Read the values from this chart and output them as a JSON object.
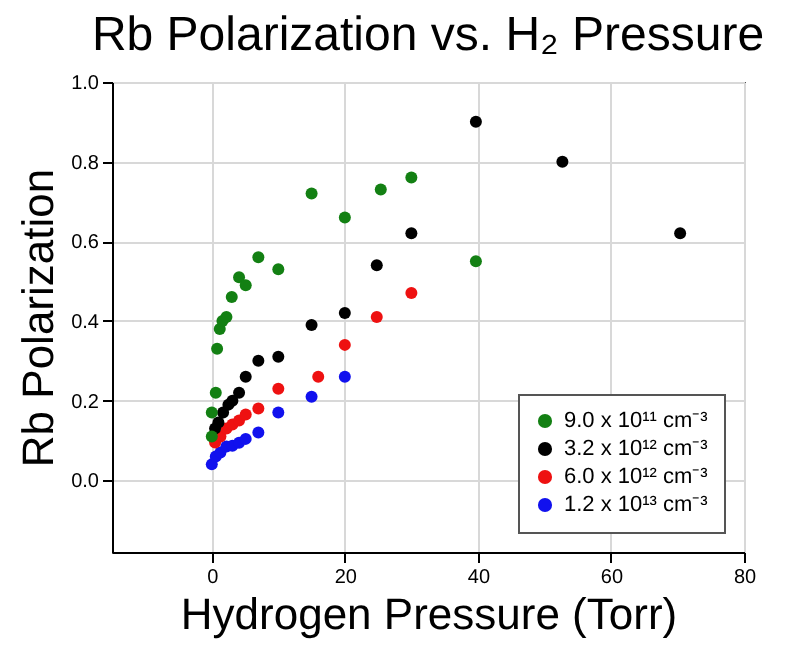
{
  "chart_data": {
    "type": "scatter",
    "title": "Rb Polarization vs. H₂ Pressure",
    "xlabel": "Hydrogen Pressure (Torr)",
    "ylabel": "Rb Polarization",
    "xlim": [
      -15,
      80
    ],
    "xticks": [
      0,
      20,
      40,
      60,
      80
    ],
    "ylim": [
      -0.18,
      1.0
    ],
    "yticks": [
      {
        "value": 0,
        "label": "0.0"
      },
      0.2,
      0.4,
      0.6,
      0.8,
      {
        "value": 1,
        "label": "1.0"
      }
    ],
    "grid": true,
    "legend": "bottom right",
    "marker": "circle",
    "series": [
      {
        "name": "9.0 x 10¹¹ cm⁻³",
        "color": "#138013",
        "x": [
          0,
          0,
          0.6,
          0.8,
          1.2,
          1.6,
          2.2,
          3.0,
          4.1,
          5.1,
          7.0,
          10,
          15,
          20,
          25.4,
          30,
          39.7
        ],
        "values": [
          0.11,
          0.17,
          0.22,
          0.33,
          0.38,
          0.4,
          0.41,
          0.46,
          0.51,
          0.49,
          0.56,
          0.53,
          0.72,
          0.66,
          0.73,
          0.76,
          0.55
        ]
      },
      {
        "name": "3.2 x 10¹² cm⁻³",
        "color": "#000000",
        "x": [
          0.5,
          1.0,
          1.7,
          2.5,
          3.1,
          4.1,
          5.1,
          7.0,
          10,
          15,
          20,
          24.8,
          30,
          39.7,
          52.7,
          70.4
        ],
        "values": [
          0.13,
          0.145,
          0.17,
          0.19,
          0.2,
          0.22,
          0.26,
          0.3,
          0.31,
          0.39,
          0.42,
          0.54,
          0.62,
          0.9,
          0.8,
          0.62
        ]
      },
      {
        "name": "6.0 x 10¹² cm⁻³",
        "color": "#ee1111",
        "x": [
          0.5,
          1.3,
          2.2,
          3.1,
          4.1,
          5.1,
          7.0,
          10,
          16,
          20,
          24.8,
          30
        ],
        "values": [
          0.095,
          0.11,
          0.13,
          0.14,
          0.15,
          0.165,
          0.18,
          0.23,
          0.26,
          0.34,
          0.41,
          0.47
        ]
      },
      {
        "name": "1.2 x 10¹³ cm⁻³",
        "color": "#1111ee",
        "x": [
          0,
          0.6,
          1.3,
          2.2,
          3.1,
          4.1,
          5.1,
          7.0,
          10,
          15,
          20
        ],
        "values": [
          0.04,
          0.06,
          0.07,
          0.085,
          0.087,
          0.094,
          0.104,
          0.12,
          0.17,
          0.21,
          0.26
        ]
      }
    ]
  }
}
